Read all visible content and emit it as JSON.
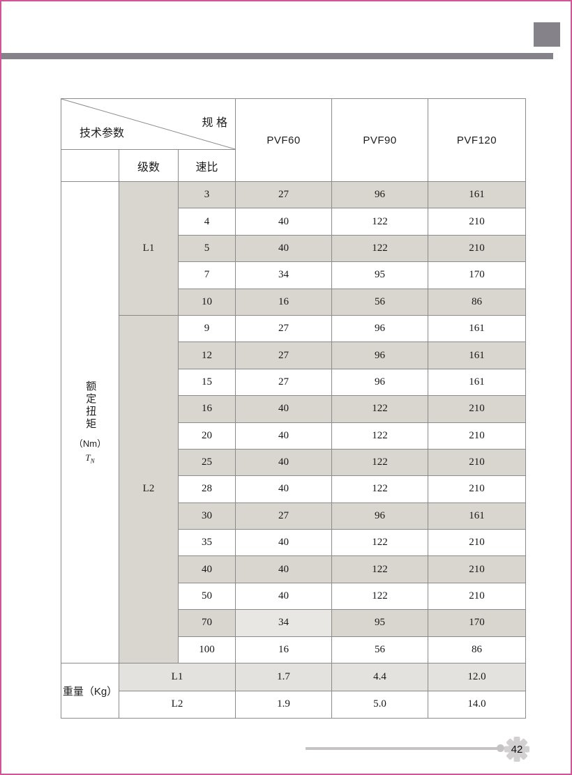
{
  "page": {
    "number": "42"
  },
  "table": {
    "corner": {
      "top_label": "规 格",
      "bottom_label": "技术参数"
    },
    "col_headers": [
      "PVF60",
      "PVF90",
      "PVF120"
    ],
    "sub_headers": {
      "stage": "级数",
      "ratio": "速比"
    },
    "torque_label": {
      "vertical_text": "额定扭矩",
      "unit": "（Nm）",
      "symbol_base": "T",
      "symbol_sub": "N"
    },
    "groups": [
      {
        "stage": "L1",
        "rows": [
          {
            "ratio": "3",
            "values": [
              "27",
              "96",
              "161"
            ]
          },
          {
            "ratio": "4",
            "values": [
              "40",
              "122",
              "210"
            ]
          },
          {
            "ratio": "5",
            "values": [
              "40",
              "122",
              "210"
            ]
          },
          {
            "ratio": "7",
            "values": [
              "34",
              "95",
              "170"
            ]
          },
          {
            "ratio": "10",
            "values": [
              "16",
              "56",
              "86"
            ]
          }
        ]
      },
      {
        "stage": "L2",
        "rows": [
          {
            "ratio": "9",
            "values": [
              "27",
              "96",
              "161"
            ]
          },
          {
            "ratio": "12",
            "values": [
              "27",
              "96",
              "161"
            ]
          },
          {
            "ratio": "15",
            "values": [
              "27",
              "96",
              "161"
            ]
          },
          {
            "ratio": "16",
            "values": [
              "40",
              "122",
              "210"
            ]
          },
          {
            "ratio": "20",
            "values": [
              "40",
              "122",
              "210"
            ]
          },
          {
            "ratio": "25",
            "values": [
              "40",
              "122",
              "210"
            ]
          },
          {
            "ratio": "28",
            "values": [
              "40",
              "122",
              "210"
            ]
          },
          {
            "ratio": "30",
            "values": [
              "27",
              "96",
              "161"
            ]
          },
          {
            "ratio": "35",
            "values": [
              "40",
              "122",
              "210"
            ]
          },
          {
            "ratio": "40",
            "values": [
              "40",
              "122",
              "210"
            ]
          },
          {
            "ratio": "50",
            "values": [
              "40",
              "122",
              "210"
            ]
          },
          {
            "ratio": "70",
            "values": [
              "34",
              "95",
              "170"
            ],
            "muted": [
              0
            ]
          },
          {
            "ratio": "100",
            "values": [
              "16",
              "56",
              "86"
            ]
          }
        ]
      }
    ],
    "weight": {
      "label": "重量（Kg）",
      "rows": [
        {
          "stage": "L1",
          "values": [
            "1.7",
            "4.4",
            "12.0"
          ]
        },
        {
          "stage": "L2",
          "values": [
            "1.9",
            "5.0",
            "14.0"
          ]
        }
      ]
    }
  },
  "colors": {
    "border_pink": "#d0549a",
    "decor_gray": "#85828a",
    "row_shade": "#d9d6d0",
    "row_shade_light": "#e8e7e4",
    "weight_shade": "#e3e2df",
    "grid_line": "#8a8a8a",
    "footer_gray": "#c5c3c4",
    "gear_fill": "#d2d0d1"
  }
}
